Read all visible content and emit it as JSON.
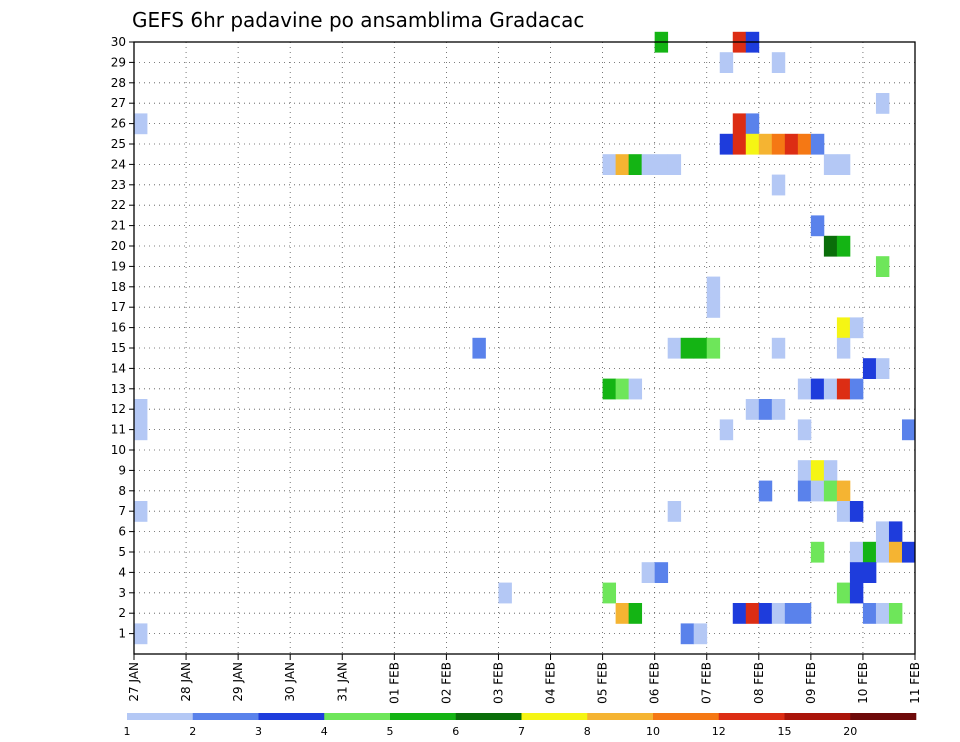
{
  "chart_data": {
    "type": "heatmap",
    "title": "GEFS 6hr padavine po ansamblima Gradacac",
    "xlabel": "",
    "ylabel": "",
    "x_ticks": [
      "27 JAN",
      "28 JAN",
      "29 JAN",
      "30 JAN",
      "31 JAN",
      "01 FEB",
      "02 FEB",
      "03 FEB",
      "04 FEB",
      "05 FEB",
      "06 FEB",
      "07 FEB",
      "08 FEB",
      "09 FEB",
      "10 FEB",
      "11 FEB"
    ],
    "x_range": [
      "27 JAN 00h",
      "11 FEB 00h"
    ],
    "time_step_hours": 6,
    "y_ticks": [
      1,
      2,
      3,
      4,
      5,
      6,
      7,
      8,
      9,
      10,
      11,
      12,
      13,
      14,
      15,
      16,
      17,
      18,
      19,
      20,
      21,
      22,
      23,
      24,
      25,
      26,
      27,
      28,
      29,
      30
    ],
    "y_range": [
      0,
      30
    ],
    "grid": "dotted",
    "colorbar": {
      "levels": [
        "1",
        "2",
        "3",
        "4",
        "5",
        "6",
        "7",
        "8",
        "10",
        "12",
        "15",
        "20"
      ],
      "colors": [
        "#b4c8f5",
        "#5a82eb",
        "#1e3cdc",
        "#6ee65a",
        "#14b414",
        "#0a6e0a",
        "#f5f514",
        "#f5b432",
        "#f57814",
        "#dc2d14",
        "#aa140a",
        "#6e0a0a"
      ]
    },
    "cells": [
      [
        30,
        40,
        4
      ],
      [
        30,
        46,
        9
      ],
      [
        30,
        47,
        2
      ],
      [
        29,
        45,
        0
      ],
      [
        29,
        49,
        0
      ],
      [
        27,
        57,
        0
      ],
      [
        26,
        0,
        0
      ],
      [
        26,
        46,
        9
      ],
      [
        26,
        47,
        1
      ],
      [
        25,
        45,
        2
      ],
      [
        25,
        46,
        9
      ],
      [
        25,
        47,
        6
      ],
      [
        25,
        48,
        7
      ],
      [
        25,
        49,
        8
      ],
      [
        25,
        50,
        9
      ],
      [
        25,
        51,
        8
      ],
      [
        25,
        52,
        1
      ],
      [
        24,
        36,
        0
      ],
      [
        24,
        37,
        7
      ],
      [
        24,
        38,
        4
      ],
      [
        24,
        39,
        0
      ],
      [
        24,
        40,
        0
      ],
      [
        24,
        41,
        0
      ],
      [
        24,
        53,
        0
      ],
      [
        24,
        54,
        0
      ],
      [
        23,
        49,
        0
      ],
      [
        21,
        52,
        1
      ],
      [
        20,
        53,
        5
      ],
      [
        20,
        54,
        4
      ],
      [
        19,
        57,
        3
      ],
      [
        18,
        44,
        0
      ],
      [
        17,
        44,
        0
      ],
      [
        16,
        54,
        6
      ],
      [
        16,
        55,
        0
      ],
      [
        15,
        26,
        1
      ],
      [
        15,
        41,
        0
      ],
      [
        15,
        42,
        4
      ],
      [
        15,
        43,
        4
      ],
      [
        15,
        44,
        3
      ],
      [
        15,
        49,
        0
      ],
      [
        15,
        54,
        0
      ],
      [
        14,
        56,
        2
      ],
      [
        14,
        57,
        0
      ],
      [
        13,
        36,
        4
      ],
      [
        13,
        37,
        3
      ],
      [
        13,
        38,
        0
      ],
      [
        13,
        51,
        0
      ],
      [
        13,
        52,
        2
      ],
      [
        13,
        53,
        0
      ],
      [
        13,
        54,
        9
      ],
      [
        13,
        55,
        1
      ],
      [
        12,
        0,
        0
      ],
      [
        12,
        47,
        0
      ],
      [
        12,
        48,
        1
      ],
      [
        12,
        49,
        0
      ],
      [
        11,
        0,
        0
      ],
      [
        11,
        45,
        0
      ],
      [
        11,
        51,
        0
      ],
      [
        11,
        59,
        1
      ],
      [
        9,
        51,
        0
      ],
      [
        9,
        52,
        6
      ],
      [
        9,
        53,
        0
      ],
      [
        8,
        48,
        1
      ],
      [
        8,
        51,
        1
      ],
      [
        8,
        52,
        0
      ],
      [
        8,
        53,
        3
      ],
      [
        8,
        54,
        7
      ],
      [
        7,
        0,
        0
      ],
      [
        7,
        41,
        0
      ],
      [
        7,
        54,
        0
      ],
      [
        7,
        55,
        2
      ],
      [
        6,
        57,
        0
      ],
      [
        6,
        58,
        2
      ],
      [
        5,
        52,
        3
      ],
      [
        5,
        55,
        0
      ],
      [
        5,
        56,
        4
      ],
      [
        5,
        57,
        0
      ],
      [
        5,
        58,
        7
      ],
      [
        5,
        59,
        2
      ],
      [
        4,
        39,
        0
      ],
      [
        4,
        40,
        1
      ],
      [
        4,
        55,
        2
      ],
      [
        4,
        56,
        2
      ],
      [
        3,
        28,
        0
      ],
      [
        3,
        36,
        3
      ],
      [
        3,
        54,
        3
      ],
      [
        3,
        55,
        2
      ],
      [
        2,
        37,
        7
      ],
      [
        2,
        38,
        4
      ],
      [
        2,
        46,
        2
      ],
      [
        2,
        47,
        9
      ],
      [
        2,
        48,
        2
      ],
      [
        2,
        49,
        0
      ],
      [
        2,
        50,
        1
      ],
      [
        2,
        51,
        1
      ],
      [
        2,
        56,
        1
      ],
      [
        2,
        57,
        0
      ],
      [
        2,
        58,
        3
      ],
      [
        1,
        0,
        0
      ],
      [
        1,
        42,
        1
      ],
      [
        1,
        43,
        0
      ]
    ]
  }
}
